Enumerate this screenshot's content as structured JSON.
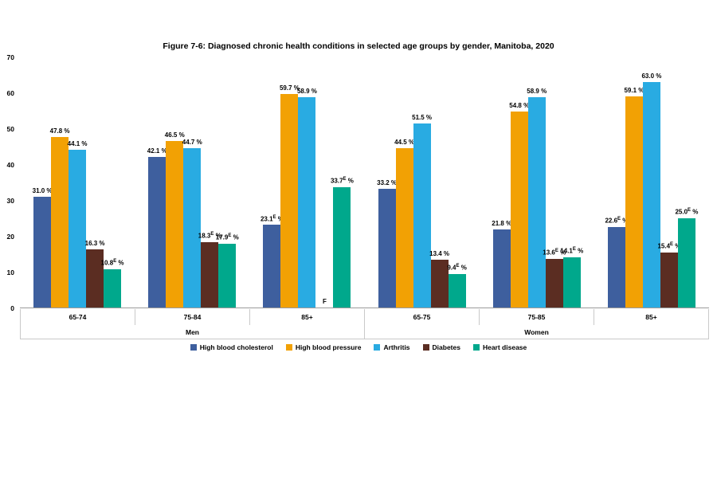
{
  "chart_data": {
    "type": "bar",
    "title": "Figure 7-6: Diagnosed chronic health conditions in selected age groups by gender, Manitoba, 2020",
    "ylim": [
      0,
      70
    ],
    "yticks": [
      0,
      10,
      20,
      30,
      40,
      50,
      60,
      70
    ],
    "grid": false,
    "legend_position": "bottom",
    "series_names": [
      "High blood cholesterol",
      "High blood pressure",
      "Arthritis",
      "Diabetes",
      "Heart disease"
    ],
    "series_colors": [
      "#3E5F9E",
      "#F2A104",
      "#29ABE2",
      "#5B2D22",
      "#00A88C"
    ],
    "suppressed_symbol": "F",
    "estimate_flag": "E",
    "genders": [
      {
        "label": "Men",
        "span": 3
      },
      {
        "label": "Women",
        "span": 3
      }
    ],
    "groups": [
      {
        "gender": "Men",
        "age": "65-74",
        "values": [
          {
            "v": 31.0,
            "label": "31.0",
            "flag": ""
          },
          {
            "v": 47.8,
            "label": "47.8",
            "flag": ""
          },
          {
            "v": 44.1,
            "label": "44.1",
            "flag": ""
          },
          {
            "v": 16.3,
            "label": "16.3",
            "flag": ""
          },
          {
            "v": 10.8,
            "label": "10.8",
            "flag": "E"
          }
        ]
      },
      {
        "gender": "Men",
        "age": "75-84",
        "values": [
          {
            "v": 42.1,
            "label": "42.1",
            "flag": ""
          },
          {
            "v": 46.5,
            "label": "46.5",
            "flag": ""
          },
          {
            "v": 44.7,
            "label": "44.7",
            "flag": ""
          },
          {
            "v": 18.3,
            "label": "18.3",
            "flag": "E"
          },
          {
            "v": 17.9,
            "label": "17.9",
            "flag": "E"
          }
        ]
      },
      {
        "gender": "Men",
        "age": "85+",
        "values": [
          {
            "v": 23.1,
            "label": "23.1",
            "flag": "E"
          },
          {
            "v": 59.7,
            "label": "59.7",
            "flag": ""
          },
          {
            "v": 58.9,
            "label": "58.9",
            "flag": ""
          },
          {
            "v": null,
            "label": "F",
            "flag": ""
          },
          {
            "v": 33.7,
            "label": "33.7",
            "flag": "E"
          }
        ]
      },
      {
        "gender": "Women",
        "age": "65-75",
        "values": [
          {
            "v": 33.2,
            "label": "33.2",
            "flag": ""
          },
          {
            "v": 44.5,
            "label": "44.5",
            "flag": ""
          },
          {
            "v": 51.5,
            "label": "51.5",
            "flag": ""
          },
          {
            "v": 13.4,
            "label": "13.4",
            "flag": ""
          },
          {
            "v": 9.4,
            "label": "9.4",
            "flag": "E"
          }
        ]
      },
      {
        "gender": "Women",
        "age": "75-85",
        "values": [
          {
            "v": 21.8,
            "label": "21.8",
            "flag": ""
          },
          {
            "v": 54.8,
            "label": "54.8",
            "flag": ""
          },
          {
            "v": 58.9,
            "label": "58.9",
            "flag": ""
          },
          {
            "v": 13.6,
            "label": "13.6",
            "flag": "E"
          },
          {
            "v": 14.1,
            "label": "14.1",
            "flag": "E"
          }
        ]
      },
      {
        "gender": "Women",
        "age": "85+",
        "values": [
          {
            "v": 22.6,
            "label": "22.6",
            "flag": "E"
          },
          {
            "v": 59.1,
            "label": "59.1",
            "flag": ""
          },
          {
            "v": 63.0,
            "label": "63.0",
            "flag": ""
          },
          {
            "v": 15.4,
            "label": "15.4",
            "flag": "E"
          },
          {
            "v": 25.0,
            "label": "25.0",
            "flag": "E"
          }
        ]
      }
    ]
  }
}
